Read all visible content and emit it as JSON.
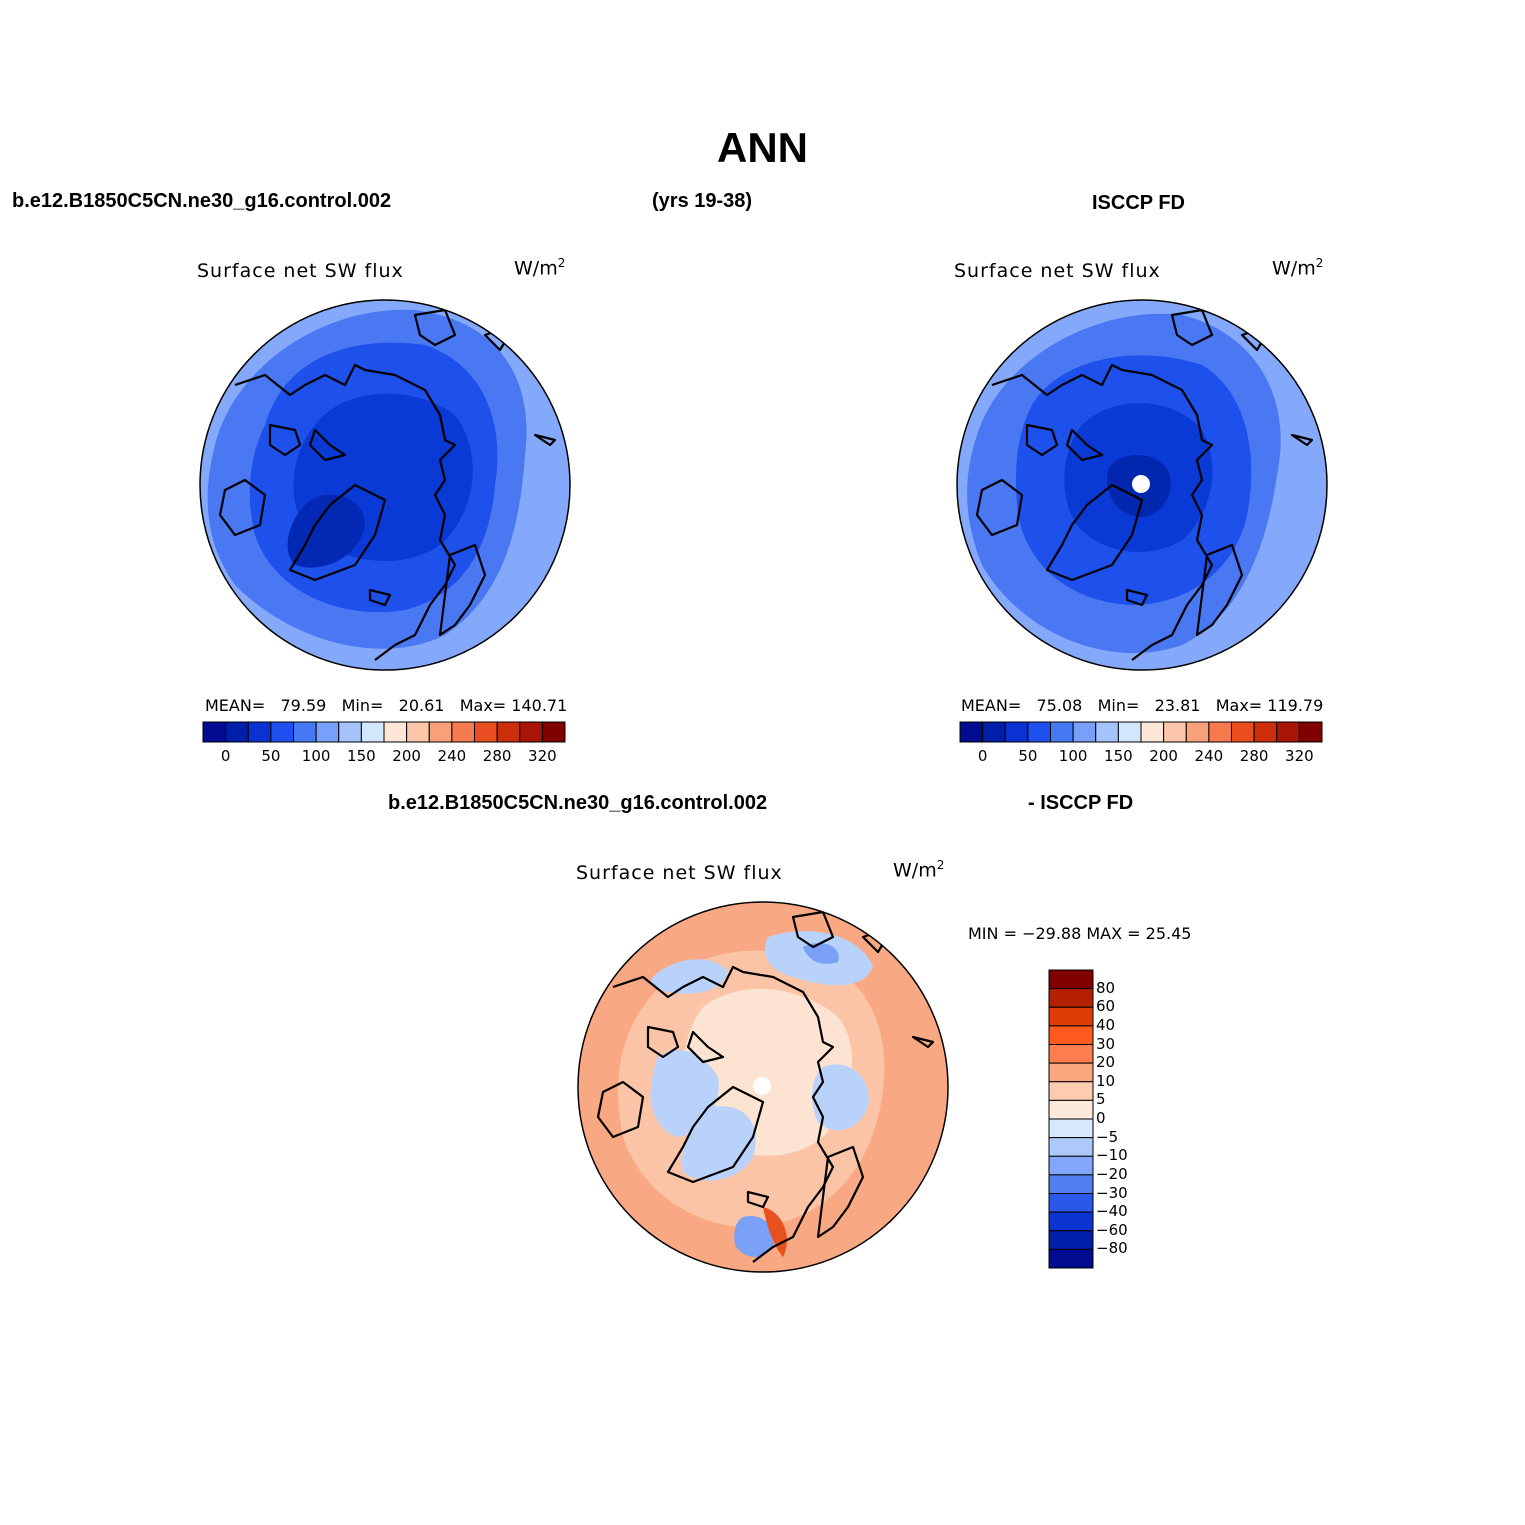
{
  "header": {
    "title": "ANN",
    "case_name": "b.e12.B1850C5CN.ne30_g16.control.002",
    "years": "(yrs 19-38)",
    "obs_name": "ISCCP FD",
    "diff_case_name": "b.e12.B1850C5CN.ne30_g16.control.002",
    "diff_obs_name": "- ISCCP FD"
  },
  "panels": [
    {
      "variable": "Surface net SW flux",
      "units": "W/m",
      "units_exp": "2",
      "stats": {
        "mean_label": "MEAN=",
        "mean": "79.59",
        "min_label": "Min=",
        "min": "20.61",
        "max_label": "Max=",
        "max": "140.71"
      },
      "pole_hole": false
    },
    {
      "variable": "Surface net SW flux",
      "units": "W/m",
      "units_exp": "2",
      "stats": {
        "mean_label": "MEAN=",
        "mean": "75.08",
        "min_label": "Min=",
        "min": "23.81",
        "max_label": "Max=",
        "max": "119.79"
      },
      "pole_hole": true
    }
  ],
  "abs_colorbar": {
    "colors": [
      "#000b8f",
      "#001fa8",
      "#0a32d2",
      "#1e50f0",
      "#4678f5",
      "#78a0fa",
      "#a6c4fc",
      "#d3e7fc",
      "#fde6d6",
      "#fbc6aa",
      "#f8a078",
      "#f57a4e",
      "#ea4d20",
      "#cc2d0a",
      "#a81405",
      "#800000"
    ],
    "labels": [
      "0",
      "50",
      "100",
      "150",
      "200",
      "240",
      "280",
      "320"
    ]
  },
  "diff_panel": {
    "variable": "Surface net SW flux",
    "units": "W/m",
    "units_exp": "2",
    "minmax": "MIN = −29.88 MAX =   25.45",
    "pole_hole": true
  },
  "diff_colorbar": {
    "colors_top_to_bottom": [
      "#800000",
      "#b42000",
      "#e03c08",
      "#ff5a1e",
      "#fc7e4e",
      "#faa67e",
      "#fccbb0",
      "#fde9da",
      "#d6e8fc",
      "#aec8fc",
      "#84a6fa",
      "#5080f0",
      "#2a58e8",
      "#0c34d0",
      "#001fa8",
      "#000b8f"
    ],
    "labels": [
      "80",
      "60",
      "40",
      "30",
      "20",
      "10",
      "5",
      "0",
      "−5",
      "−10",
      "−20",
      "−30",
      "−40",
      "−60",
      "−80"
    ]
  },
  "colors": {
    "abs_ocean": "#84a8fa",
    "abs_mid": "#4a78f2",
    "abs_inner": "#1e50ec",
    "abs_core": "#0a3ad6",
    "diff_base": "#f8a882",
    "diff_pale": "#fde4d2",
    "diff_blue": "#b8d2fc",
    "diff_blue_dark": "#7aa0f8",
    "land_outline": "#000000"
  }
}
